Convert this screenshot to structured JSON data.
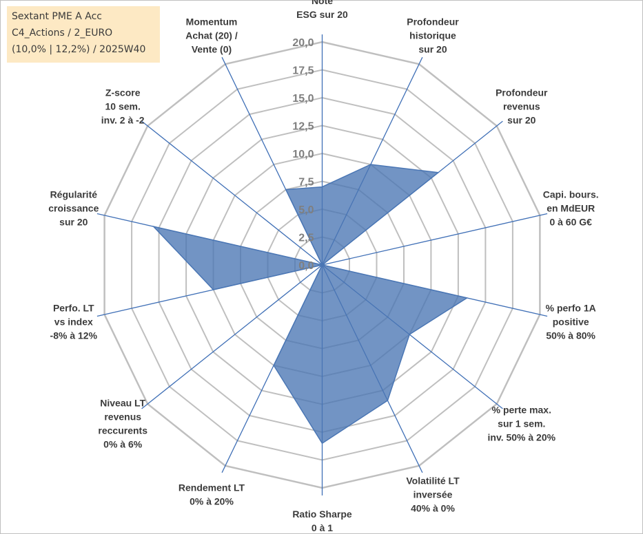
{
  "fund": {
    "name": "Sextant PME A Acc",
    "category": "C4_Actions / 2_EURO",
    "stats": "(10,0% | 12,2%) / 2025W40"
  },
  "colors": {
    "fill": "#4a76b4",
    "spoke": "#3f6fb6",
    "ring": "#bfbfbf",
    "tick": "#7f7f7f",
    "label": "#3b3b3b",
    "fund_box": "#fde9c4"
  },
  "chart_data": {
    "type": "radar",
    "rmin": 0,
    "rmax": 20,
    "step": 2.5,
    "ticks": [
      "0,0",
      "2,5",
      "5,0",
      "7,5",
      "10,0",
      "12,5",
      "15,0",
      "17,5",
      "20,0"
    ],
    "axes": [
      {
        "lines": [
          "Note",
          "ESG sur 20"
        ]
      },
      {
        "lines": [
          "Profondeur",
          "historique",
          "sur 20"
        ]
      },
      {
        "lines": [
          "Profondeur",
          "revenus",
          "sur 20"
        ]
      },
      {
        "lines": [
          "Capi. bours.",
          "en MdEUR",
          "0 à 60 G€"
        ]
      },
      {
        "lines": [
          "% perfo 1A",
          "positive",
          "50% à 80%"
        ]
      },
      {
        "lines": [
          "% perte max.",
          "sur 1 sem.",
          "inv. 50% à 20%"
        ]
      },
      {
        "lines": [
          "Volatilité LT",
          "inversée",
          "40% à 0%"
        ]
      },
      {
        "lines": [
          "Ratio Sharpe",
          "0 à 1"
        ]
      },
      {
        "lines": [
          "Rendement LT",
          "0% à 20%"
        ]
      },
      {
        "lines": [
          "Niveau LT",
          "revenus",
          "reccurents",
          "0% à 6%"
        ]
      },
      {
        "lines": [
          "Perfo. LT",
          "vs index",
          "-8% à 12%"
        ]
      },
      {
        "lines": [
          "Régularité",
          "croissance",
          "sur 20"
        ]
      },
      {
        "lines": [
          "Z-score",
          "10 sem.",
          "inv. 2 à -2"
        ]
      },
      {
        "lines": [
          "Momentum",
          "Achat (20) /",
          "Vente (0)"
        ]
      }
    ],
    "series": [
      {
        "name": "Sextant PME A Acc",
        "values": [
          7.0,
          10.0,
          13.3,
          0.0,
          13.3,
          10.0,
          13.5,
          16.0,
          10.0,
          0.0,
          10.0,
          15.5,
          0.0,
          7.5
        ]
      }
    ]
  }
}
